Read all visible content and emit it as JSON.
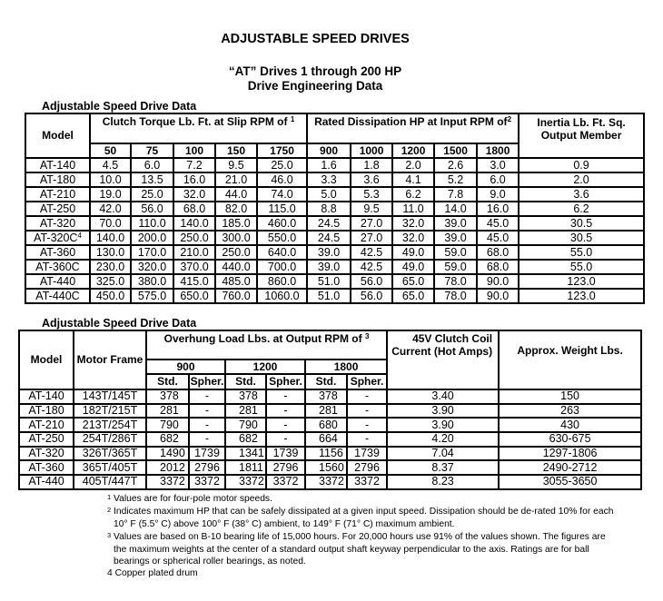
{
  "title": "ADJUSTABLE SPEED DRIVES",
  "subtitle1": "“AT” Drives 1 through 200 HP",
  "subtitle2": "Drive Engineering Data",
  "table1": {
    "caption": "Adjustable Speed Drive Data",
    "model_header": "Model",
    "torque_header": "Clutch Torque Lb. Ft. at Slip RPM of",
    "torque_note": "1",
    "dissipation_header": "Rated Dissipation HP at Input RPM of",
    "dissipation_note": "2",
    "inertia_header": "Inertia Lb. Ft. Sq. Output Member",
    "torque_rpms": [
      "50",
      "75",
      "100",
      "150",
      "1750"
    ],
    "dissipation_rpms": [
      "900",
      "1000",
      "1200",
      "1500",
      "1800"
    ],
    "rows": [
      {
        "model": "AT-140",
        "note": "",
        "values": [
          "4.5",
          "6.0",
          "7.2",
          "9.5",
          "25.0",
          "1.6",
          "1.8",
          "2.0",
          "2.6",
          "3.0",
          "0.9"
        ]
      },
      {
        "model": "AT-180",
        "note": "",
        "values": [
          "10.0",
          "13.5",
          "16.0",
          "21.0",
          "46.0",
          "3.3",
          "3.6",
          "4.1",
          "5.2",
          "6.0",
          "2.0"
        ]
      },
      {
        "model": "AT-210",
        "note": "",
        "values": [
          "19.0",
          "25.0",
          "32.0",
          "44.0",
          "74.0",
          "5.0",
          "5.3",
          "6.2",
          "7.8",
          "9.0",
          "3.6"
        ]
      },
      {
        "model": "AT-250",
        "note": "",
        "values": [
          "42.0",
          "56.0",
          "68.0",
          "82.0",
          "115.0",
          "8.8",
          "9.5",
          "11.0",
          "14.0",
          "16.0",
          "6.2"
        ]
      },
      {
        "model": "AT-320",
        "note": "",
        "values": [
          "70.0",
          "110.0",
          "140.0",
          "185.0",
          "460.0",
          "24.5",
          "27.0",
          "32.0",
          "39.0",
          "45.0",
          "30.5"
        ]
      },
      {
        "model": "AT-320C",
        "note": "4",
        "values": [
          "140.0",
          "200.0",
          "250.0",
          "300.0",
          "550.0",
          "24.5",
          "27.0",
          "32.0",
          "39.0",
          "45.0",
          "30.5"
        ]
      },
      {
        "model": "AT-360",
        "note": "",
        "values": [
          "130.0",
          "170.0",
          "210.0",
          "250.0",
          "640.0",
          "39.0",
          "42.5",
          "49.0",
          "59.0",
          "68.0",
          "55.0"
        ]
      },
      {
        "model": "AT-360C",
        "note": "",
        "values": [
          "230.0",
          "320.0",
          "370.0",
          "440.0",
          "700.0",
          "39.0",
          "42.5",
          "49.0",
          "59.0",
          "68.0",
          "55.0"
        ]
      },
      {
        "model": "AT-440",
        "note": "",
        "values": [
          "325.0",
          "380.0",
          "415.0",
          "485.0",
          "860.0",
          "51.0",
          "56.0",
          "65.0",
          "78.0",
          "90.0",
          "123.0"
        ]
      },
      {
        "model": "AT-440C",
        "note": "",
        "values": [
          "450.0",
          "575.0",
          "650.0",
          "760.0",
          "1060.0",
          "51.0",
          "56.0",
          "65.0",
          "78.0",
          "90.0",
          "123.0"
        ]
      }
    ]
  },
  "table2": {
    "caption": "Adjustable Speed Drive Data",
    "model_header": "Model",
    "frame_header": "Motor Frame",
    "overhung_header": "Overhung Load Lbs. at Output RPM of",
    "overhung_note": "3",
    "rpms": [
      "900",
      "1200",
      "1800"
    ],
    "std_label": "Std.",
    "spher_label": "Spher.",
    "coil_header": "45V Clutch Coil Current (Hot Amps)",
    "weight_header": "Approx. Weight Lbs.",
    "rows": [
      [
        "AT-140",
        "143T/145T",
        "378",
        "-",
        "378",
        "-",
        "378",
        "-",
        "3.40",
        "150"
      ],
      [
        "AT-180",
        "182T/215T",
        "281",
        "-",
        "281",
        "-",
        "281",
        "-",
        "3.90",
        "263"
      ],
      [
        "AT-210",
        "213T/254T",
        "790",
        "-",
        "790",
        "-",
        "680",
        "-",
        "3.90",
        "430"
      ],
      [
        "AT-250",
        "254T/286T",
        "682",
        "-",
        "682",
        "-",
        "664",
        "-",
        "4.20",
        "630-675"
      ],
      [
        "AT-320",
        "326T/365T",
        "1490",
        "1739",
        "1341",
        "1739",
        "1156",
        "1739",
        "7.04",
        "1297-1806"
      ],
      [
        "AT-360",
        "365T/405T",
        "2012",
        "2796",
        "1811",
        "2796",
        "1560",
        "2796",
        "8.37",
        "2490-2712"
      ],
      [
        "AT-440",
        "405T/447T",
        "3372",
        "3372",
        "3372",
        "3372",
        "3372",
        "3372",
        "8.23",
        "3055-3650"
      ]
    ]
  },
  "footnotes": [
    {
      "num": "1",
      "text": "Values are for four-pole motor speeds."
    },
    {
      "num": "2",
      "text": "Indicates maximum HP that can be safely dissipated at a given input speed. Dissipation should be de-rated 10% for each 10° F (5.5° C) above 100° F (38° C) ambient, to 149° F (71° C) maximum ambient."
    },
    {
      "num": "3",
      "text": "Values are based on B-10 bearing life of 15,000 hours. For 20,000 hours use 91% of the values shown. The figures are the maximum weights at the center of a standard output shaft keyway perpendicular to the axis. Ratings are for ball bearings or spherical roller bearings, as noted."
    },
    {
      "num": "4",
      "text": "Copper plated drum"
    }
  ]
}
